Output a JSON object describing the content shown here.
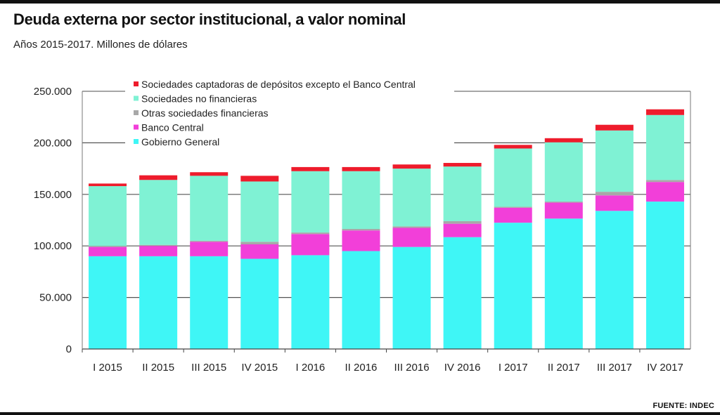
{
  "title": "Deuda externa por sector institucional, a valor nominal",
  "subtitle": "Años 2015-2017. Millones de dólares",
  "source": "FUENTE: INDEC",
  "chart_data": {
    "type": "bar",
    "stacked": true,
    "title": "Deuda externa por sector institucional, a valor nominal",
    "subtitle": "Años 2015-2017. Millones de dólares",
    "xlabel": "",
    "ylabel": "",
    "ylim": [
      0,
      250000
    ],
    "yticks": [
      0,
      50000,
      100000,
      150000,
      200000,
      250000
    ],
    "ytick_labels": [
      "0",
      "50.000",
      "100.000",
      "150.000",
      "200.000",
      "250.000"
    ],
    "grid": true,
    "legend_position": "top-left",
    "categories": [
      "I 2015",
      "II 2015",
      "III 2015",
      "IV 2015",
      "I 2016",
      "II 2016",
      "III 2016",
      "IV 2016",
      "I 2017",
      "II 2017",
      "III 2017",
      "IV 2017"
    ],
    "series": [
      {
        "name": "Gobierno General",
        "color": "#3ff6f6",
        "values": [
          90000,
          90000,
          90000,
          87500,
          91000,
          95000,
          99000,
          108500,
          122500,
          126500,
          134000,
          143000
        ]
      },
      {
        "name": "Banco Central",
        "color": "#f23fd9",
        "values": [
          9000,
          10000,
          14000,
          14000,
          20500,
          20000,
          18500,
          13000,
          14500,
          15500,
          15000,
          19000
        ]
      },
      {
        "name": "Otras sociedades financieras",
        "color": "#a8a8a8",
        "values": [
          1000,
          1000,
          1000,
          2500,
          1500,
          1500,
          1500,
          2500,
          1000,
          1000,
          3500,
          2000
        ]
      },
      {
        "name": "Sociedades no financieras",
        "color": "#7ff2d4",
        "values": [
          58000,
          63000,
          63000,
          58500,
          59500,
          56000,
          56000,
          53000,
          56500,
          57500,
          59500,
          63000
        ]
      },
      {
        "name": "Sociedades captadoras de depósitos excepto el Banco Central",
        "color": "#ee1c2c",
        "values": [
          2500,
          4500,
          3500,
          5500,
          4000,
          4000,
          4000,
          3500,
          3500,
          4000,
          5500,
          5500
        ]
      }
    ]
  }
}
